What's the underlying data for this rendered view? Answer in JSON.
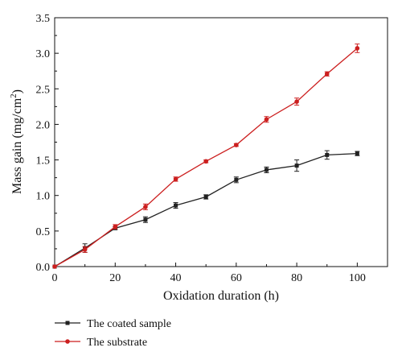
{
  "chart_data": {
    "type": "line",
    "xlabel": "Oxidation duration (h)",
    "ylabel": "Mass gain (mg/cm",
    "ylabel_sup": "2",
    "ylabel_end": ")",
    "xlim": [
      0,
      110
    ],
    "ylim": [
      0,
      3.5
    ],
    "x_ticks": [
      0,
      20,
      40,
      60,
      80,
      100
    ],
    "x_tick_labels": [
      "0",
      "20",
      "40",
      "60",
      "80",
      "100"
    ],
    "y_ticks": [
      0,
      0.5,
      1.0,
      1.5,
      2.0,
      2.5,
      3.0,
      3.5
    ],
    "y_tick_labels": [
      "0.0",
      "0.5",
      "1.0",
      "1.5",
      "2.0",
      "2.5",
      "3.0",
      "3.5"
    ],
    "grid": false,
    "legend_position": "bottom-left, below plot",
    "series": [
      {
        "name": "The coated sample",
        "color": "#222222",
        "marker": "square",
        "x": [
          0,
          10,
          20,
          30,
          40,
          50,
          60,
          70,
          80,
          90,
          100
        ],
        "y": [
          0,
          0.26,
          0.54,
          0.66,
          0.86,
          0.98,
          1.22,
          1.36,
          1.42,
          1.57,
          1.59
        ],
        "err": [
          0,
          0.06,
          0.02,
          0.04,
          0.04,
          0.03,
          0.04,
          0.04,
          0.08,
          0.06,
          0.03
        ]
      },
      {
        "name": "The substrate",
        "color": "#cc1f1f",
        "marker": "circle",
        "x": [
          0,
          10,
          20,
          30,
          40,
          50,
          60,
          70,
          80,
          90,
          100
        ],
        "y": [
          0,
          0.24,
          0.56,
          0.84,
          1.23,
          1.48,
          1.71,
          2.07,
          2.32,
          2.71,
          3.07
        ],
        "err": [
          0,
          0.04,
          0.03,
          0.04,
          0.03,
          0.02,
          0.02,
          0.04,
          0.05,
          0.03,
          0.06
        ]
      }
    ]
  }
}
